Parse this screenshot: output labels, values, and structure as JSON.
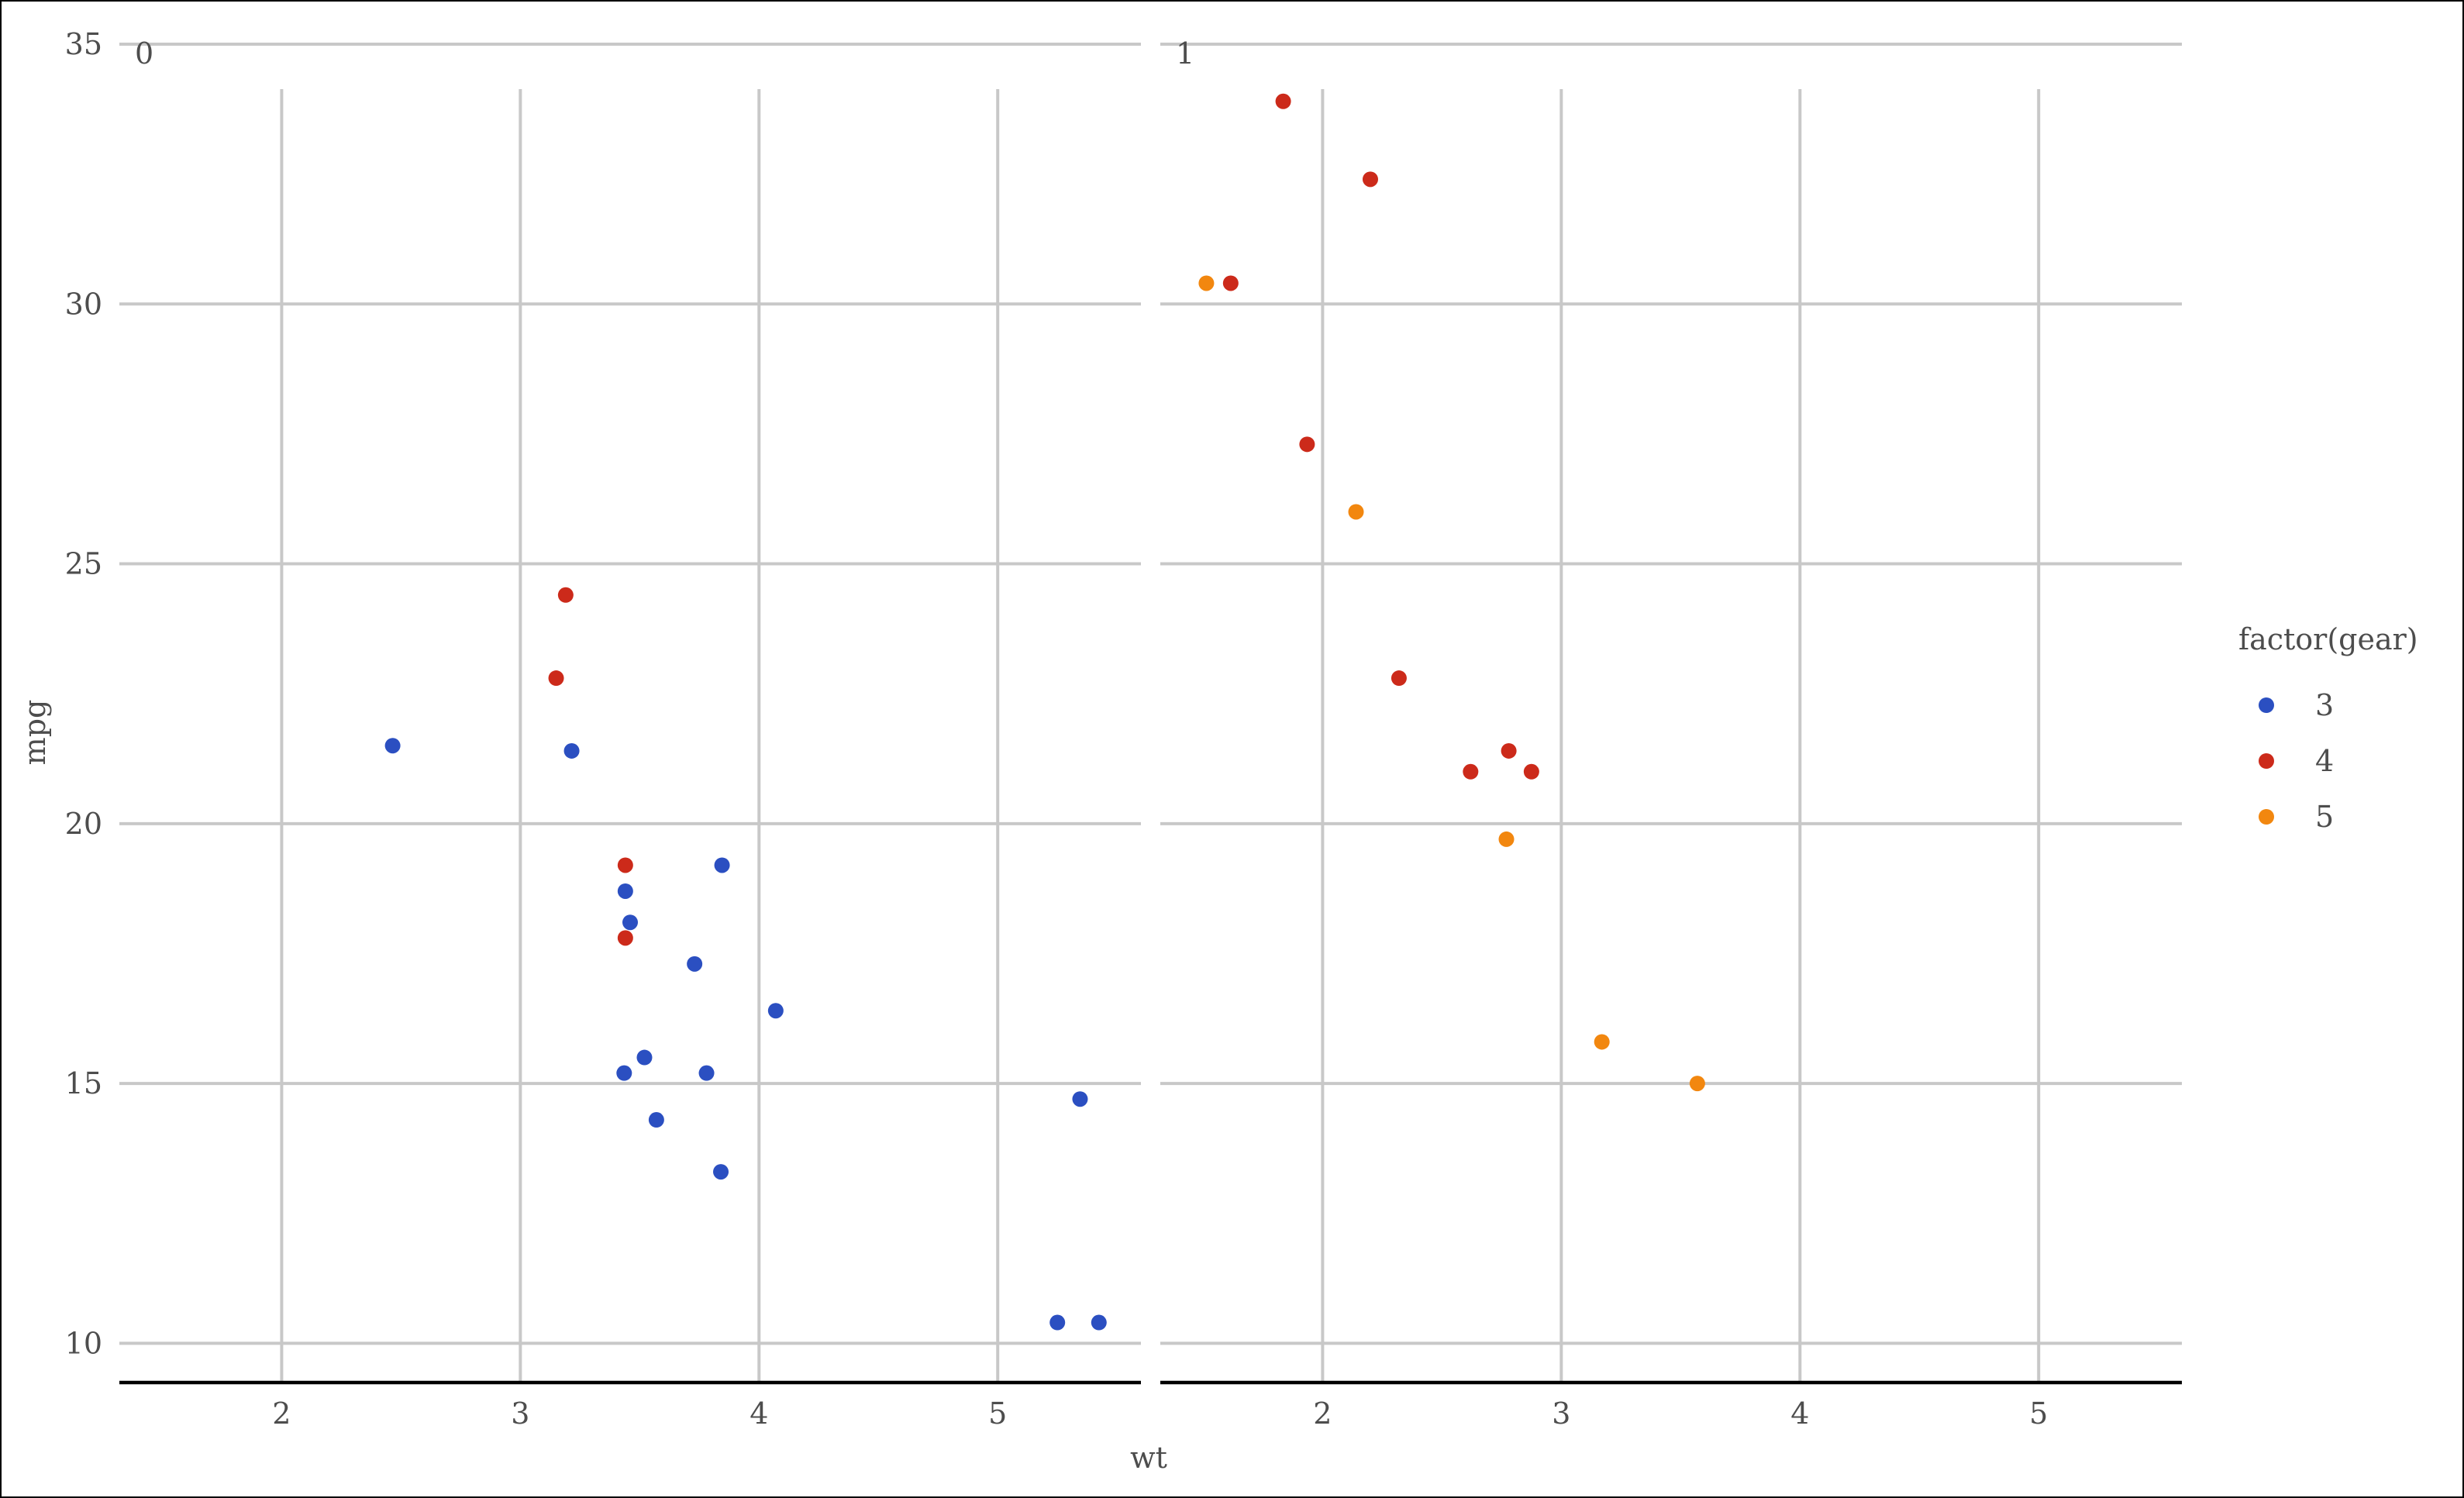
{
  "chart_data": {
    "type": "scatter",
    "xlabel": "wt",
    "ylabel": "mpg",
    "xlim": [
      1.32,
      5.6
    ],
    "ylim": [
      9.2,
      35.0
    ],
    "x_ticks": [
      2,
      3,
      4,
      5
    ],
    "y_ticks": [
      10,
      15,
      20,
      25,
      30,
      35
    ],
    "grid": true,
    "facet_variable_values": [
      "0",
      "1"
    ],
    "legend": {
      "title": "factor(gear)",
      "position": "right",
      "entries": [
        {
          "label": "3",
          "color": "#2b4fc1"
        },
        {
          "label": "4",
          "color": "#cc2a1a"
        },
        {
          "label": "5",
          "color": "#f2870f"
        }
      ]
    },
    "panels": [
      {
        "label": "0",
        "series": [
          {
            "name": "3",
            "color": "#2b4fc1",
            "points": [
              [
                2.465,
                21.5
              ],
              [
                3.215,
                21.4
              ],
              [
                3.44,
                18.7
              ],
              [
                3.46,
                18.1
              ],
              [
                3.57,
                14.3
              ],
              [
                4.07,
                16.4
              ],
              [
                3.73,
                17.3
              ],
              [
                3.78,
                15.2
              ],
              [
                5.25,
                10.4
              ],
              [
                5.424,
                10.4
              ],
              [
                5.345,
                14.7
              ],
              [
                3.52,
                15.5
              ],
              [
                3.435,
                15.2
              ],
              [
                3.84,
                13.3
              ],
              [
                3.845,
                19.2
              ]
            ]
          },
          {
            "name": "4",
            "color": "#cc2a1a",
            "points": [
              [
                3.19,
                24.4
              ],
              [
                3.15,
                22.8
              ],
              [
                3.44,
                19.2
              ],
              [
                3.44,
                17.8
              ]
            ]
          }
        ]
      },
      {
        "label": "1",
        "series": [
          {
            "name": "4",
            "color": "#cc2a1a",
            "points": [
              [
                2.62,
                21.0
              ],
              [
                2.875,
                21.0
              ],
              [
                2.32,
                22.8
              ],
              [
                2.2,
                32.4
              ],
              [
                1.615,
                30.4
              ],
              [
                1.835,
                33.9
              ],
              [
                1.935,
                27.3
              ],
              [
                2.78,
                21.4
              ]
            ]
          },
          {
            "name": "5",
            "color": "#f2870f",
            "points": [
              [
                2.14,
                26.0
              ],
              [
                1.513,
                30.4
              ],
              [
                3.17,
                15.8
              ],
              [
                2.77,
                19.7
              ],
              [
                3.57,
                15.0
              ]
            ]
          }
        ]
      }
    ]
  }
}
